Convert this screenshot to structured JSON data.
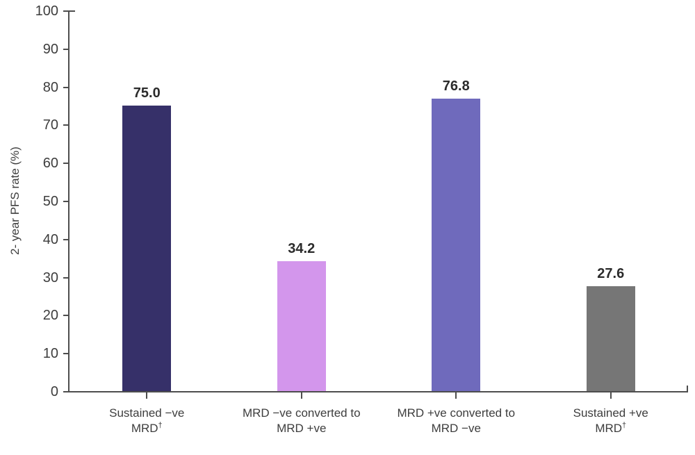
{
  "chart_data": {
    "type": "bar",
    "title": "",
    "xlabel": "",
    "ylabel": "2- year PFS rate (%)",
    "ylim": [
      0,
      100
    ],
    "ytick_step": 10,
    "ytick_labels": [
      "0",
      "10",
      "20",
      "30",
      "40",
      "50",
      "60",
      "70",
      "80",
      "90",
      "100"
    ],
    "grid": false,
    "legend": null,
    "categories": [
      "Sustained −ve MRD†",
      "MRD −ve converted to MRD +ve",
      "MRD +ve converted to MRD −ve",
      "Sustained +ve MRD†"
    ],
    "category_label_lines": [
      [
        "Sustained −ve",
        "MRD†"
      ],
      [
        "MRD −ve converted to",
        "MRD +ve"
      ],
      [
        "MRD +ve converted to",
        "MRD −ve"
      ],
      [
        "Sustained +ve",
        "MRD†"
      ]
    ],
    "values": [
      75.0,
      34.2,
      76.8,
      27.6
    ],
    "value_labels": [
      "75.0",
      "34.2",
      "76.8",
      "27.6"
    ],
    "bar_colors": [
      "#363069",
      "#D396EC",
      "#6F6ABC",
      "#767676"
    ],
    "colors": {
      "axis": "#4D4D4D",
      "tick_label": "#3D3D3D",
      "value_label": "#2B2B2B",
      "category_label": "#3D3D3D",
      "background": "#FFFFFF"
    }
  }
}
